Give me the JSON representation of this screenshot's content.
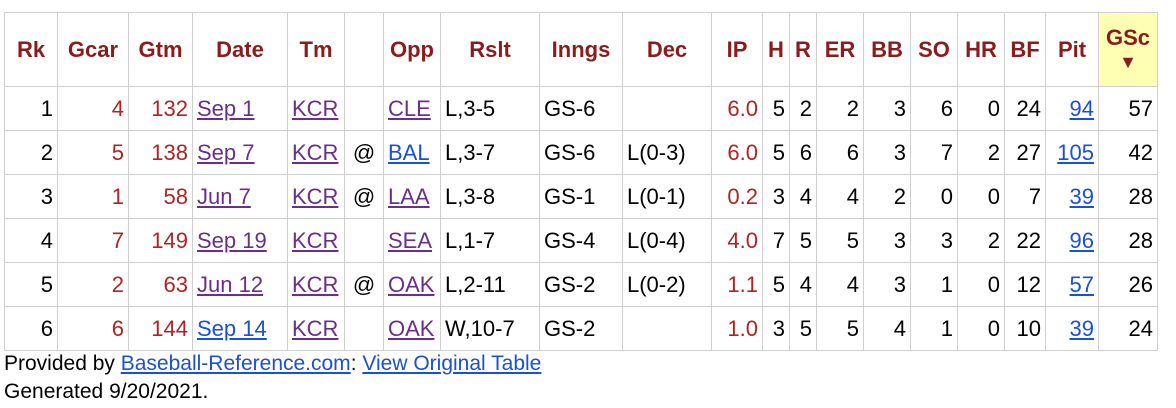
{
  "table": {
    "headers": [
      "Rk",
      "Gcar",
      "Gtm",
      "Date",
      "Tm",
      "",
      "Opp",
      "Rslt",
      "Inngs",
      "Dec",
      "IP",
      "H",
      "R",
      "ER",
      "BB",
      "SO",
      "HR",
      "BF",
      "Pit",
      "GSc"
    ],
    "sort_indicator": "▼",
    "rows": [
      {
        "rk": "1",
        "gcar": "4",
        "gtm": "132",
        "date": "Sep 1",
        "tm": "KCR",
        "at": "",
        "opp": "CLE",
        "rslt": "L,3-5",
        "inngs": "GS-6",
        "dec": "",
        "ip": "6.0",
        "h": "5",
        "r": "2",
        "er": "2",
        "bb": "3",
        "so": "6",
        "hr": "0",
        "bf": "24",
        "pit": "94",
        "gsc": "57"
      },
      {
        "rk": "2",
        "gcar": "5",
        "gtm": "138",
        "date": "Sep 7",
        "tm": "KCR",
        "at": "@",
        "opp": "BAL",
        "rslt": "L,3-7",
        "inngs": "GS-6",
        "dec": "L(0-3)",
        "ip": "6.0",
        "h": "5",
        "r": "6",
        "er": "6",
        "bb": "3",
        "so": "7",
        "hr": "2",
        "bf": "27",
        "pit": "105",
        "gsc": "42"
      },
      {
        "rk": "3",
        "gcar": "1",
        "gtm": "58",
        "date": "Jun 7",
        "tm": "KCR",
        "at": "@",
        "opp": "LAA",
        "rslt": "L,3-8",
        "inngs": "GS-1",
        "dec": "L(0-1)",
        "ip": "0.2",
        "h": "3",
        "r": "4",
        "er": "4",
        "bb": "2",
        "so": "0",
        "hr": "0",
        "bf": "7",
        "pit": "39",
        "gsc": "28"
      },
      {
        "rk": "4",
        "gcar": "7",
        "gtm": "149",
        "date": "Sep 19",
        "tm": "KCR",
        "at": "",
        "opp": "SEA",
        "rslt": "L,1-7",
        "inngs": "GS-4",
        "dec": "L(0-4)",
        "ip": "4.0",
        "h": "7",
        "r": "5",
        "er": "5",
        "bb": "3",
        "so": "3",
        "hr": "2",
        "bf": "22",
        "pit": "96",
        "gsc": "28"
      },
      {
        "rk": "5",
        "gcar": "2",
        "gtm": "63",
        "date": "Jun 12",
        "tm": "KCR",
        "at": "@",
        "opp": "OAK",
        "rslt": "L,2-11",
        "inngs": "GS-2",
        "dec": "L(0-2)",
        "ip": "1.1",
        "h": "5",
        "r": "4",
        "er": "4",
        "bb": "3",
        "so": "1",
        "hr": "0",
        "bf": "12",
        "pit": "57",
        "gsc": "26"
      },
      {
        "rk": "6",
        "gcar": "6",
        "gtm": "144",
        "date": "Sep 14",
        "tm": "KCR",
        "at": "",
        "opp": "OAK",
        "rslt": "W,10-7",
        "inngs": "GS-2",
        "dec": "",
        "ip": "1.0",
        "h": "3",
        "r": "5",
        "er": "5",
        "bb": "4",
        "so": "1",
        "hr": "0",
        "bf": "10",
        "pit": "39",
        "gsc": "24"
      }
    ]
  },
  "footer": {
    "provided_by": "Provided by ",
    "site_link": "Baseball-Reference.com",
    "colon": ": ",
    "view_link": "View Original Table",
    "generated": "Generated 9/20/2021."
  },
  "colors": {
    "header_text": "#8b1c1c",
    "sorted_bg": "#ffffb3",
    "red_numbers": "#b22222",
    "link_blue": "#1a4fd8",
    "link_purple": "#6b2e8a"
  }
}
